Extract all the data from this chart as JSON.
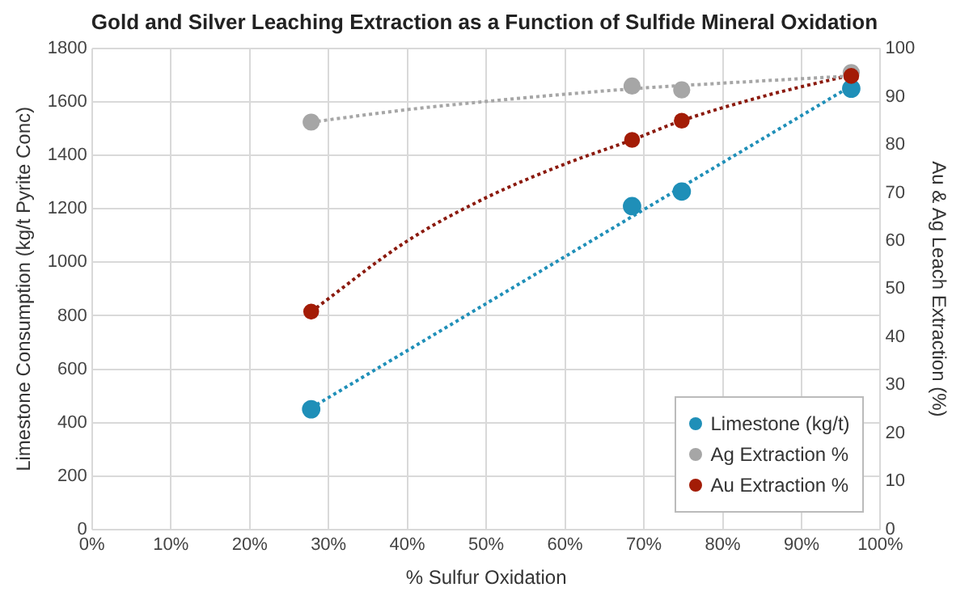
{
  "chart_data": {
    "type": "scatter",
    "title": "Gold and Silver Leaching Extraction as a Function of Sulfide Mineral Oxidation",
    "xlabel": "% Sulfur Oxidation",
    "ylabel": "Limestone Consumption (kg/t Pyrite Conc)",
    "y2label": "Au & Ag Leach Extraction (%)",
    "xlim": [
      0,
      100
    ],
    "xticks": [
      {
        "value": 0,
        "label": "0%"
      },
      {
        "value": 10,
        "label": "10%"
      },
      {
        "value": 20,
        "label": "20%"
      },
      {
        "value": 30,
        "label": "30%"
      },
      {
        "value": 40,
        "label": "40%"
      },
      {
        "value": 50,
        "label": "50%"
      },
      {
        "value": 60,
        "label": "60%"
      },
      {
        "value": 70,
        "label": "70%"
      },
      {
        "value": 80,
        "label": "80%"
      },
      {
        "value": 90,
        "label": "90%"
      },
      {
        "value": 100,
        "label": "100%"
      }
    ],
    "ylim": [
      0,
      1800
    ],
    "yticks": [
      0,
      200,
      400,
      600,
      800,
      1000,
      1200,
      1400,
      1600,
      1800
    ],
    "y2lim": [
      0,
      100
    ],
    "y2ticks": [
      0,
      10,
      20,
      30,
      40,
      50,
      60,
      70,
      80,
      90,
      100
    ],
    "grid": true,
    "legend": "bottom right",
    "marker": "circle",
    "series": [
      {
        "type": "line",
        "color": "#1f8fb8",
        "line_style": "dotted",
        "marker": "none",
        "x": [
          27.8,
          96.3
        ],
        "values": [
          455,
          1660
        ]
      },
      {
        "type": "line",
        "color": "#a6a6a6",
        "line_style": "dotted",
        "marker": "none",
        "axis": "y2",
        "x": [
          27.8,
          40,
          50,
          60,
          70,
          80,
          96.3
        ],
        "values": [
          84.7,
          87.3,
          89,
          90.5,
          91.8,
          92.8,
          94.3
        ]
      },
      {
        "type": "line",
        "color": "#8b1a0e",
        "line_style": "dotted",
        "marker": "none",
        "axis": "y2",
        "x": [
          27.8,
          40,
          50,
          60,
          68.5,
          74.8,
          85,
          96.3
        ],
        "values": [
          45.3,
          60,
          69,
          76,
          81,
          85,
          90,
          94.5
        ]
      },
      {
        "name": "Limestone (kg/t)",
        "color": "#1f8fb8",
        "x": [
          27.8,
          68.5,
          74.8,
          96.3
        ],
        "values": [
          450,
          1210,
          1265,
          1650
        ]
      },
      {
        "name": "Ag Extraction %",
        "color": "#a6a6a6",
        "axis": "y2",
        "x": [
          27.8,
          68.5,
          74.8,
          96.3
        ],
        "values": [
          84.7,
          92.2,
          91.4,
          95
        ]
      },
      {
        "name": "Au Extraction %",
        "color": "#a31c06",
        "axis": "y2",
        "x": [
          27.8,
          68.5,
          74.8,
          96.3
        ],
        "values": [
          45.3,
          81,
          85,
          94.3
        ]
      }
    ]
  }
}
